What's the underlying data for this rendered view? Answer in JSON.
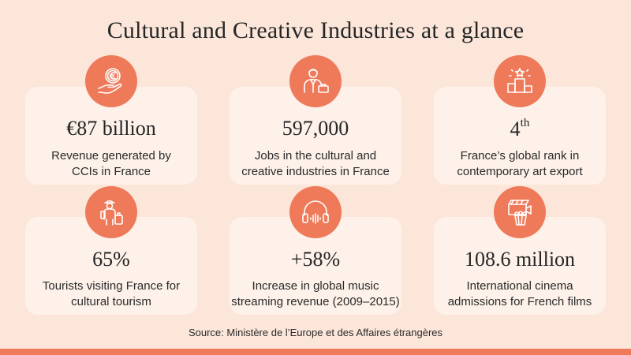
{
  "title": "Cultural and Creative Industries at a glance",
  "colors": {
    "background": "#fce6da",
    "card": "#fdf1e9",
    "accent": "#ee7a5a"
  },
  "stats": [
    {
      "icon": "euro-coin-hand-icon",
      "value": "€87 billion",
      "desc_line1": "Revenue generated by",
      "desc_line2": "CCIs in France"
    },
    {
      "icon": "businessman-icon",
      "value": "597,000",
      "desc_line1": "Jobs in the cultural and",
      "desc_line2": "creative industries in France"
    },
    {
      "icon": "podium-star-icon",
      "value": "4",
      "value_sup": "th",
      "desc_line1": "France’s global rank in",
      "desc_line2": "contemporary art export"
    },
    {
      "icon": "tourist-luggage-icon",
      "value": "65%",
      "desc_line1": "Tourists visiting France for",
      "desc_line2": "cultural tourism"
    },
    {
      "icon": "headphones-icon",
      "value": "+58%",
      "desc_line1": "Increase in global music",
      "desc_line2": "streaming revenue (2009–2015)"
    },
    {
      "icon": "cinema-clapper-popcorn-icon",
      "value": "108.6 million",
      "desc_line1": "International cinema",
      "desc_line2": "admissions for French films"
    }
  ],
  "source": "Source: Ministère de l’Europe et des Affaires étrangères"
}
